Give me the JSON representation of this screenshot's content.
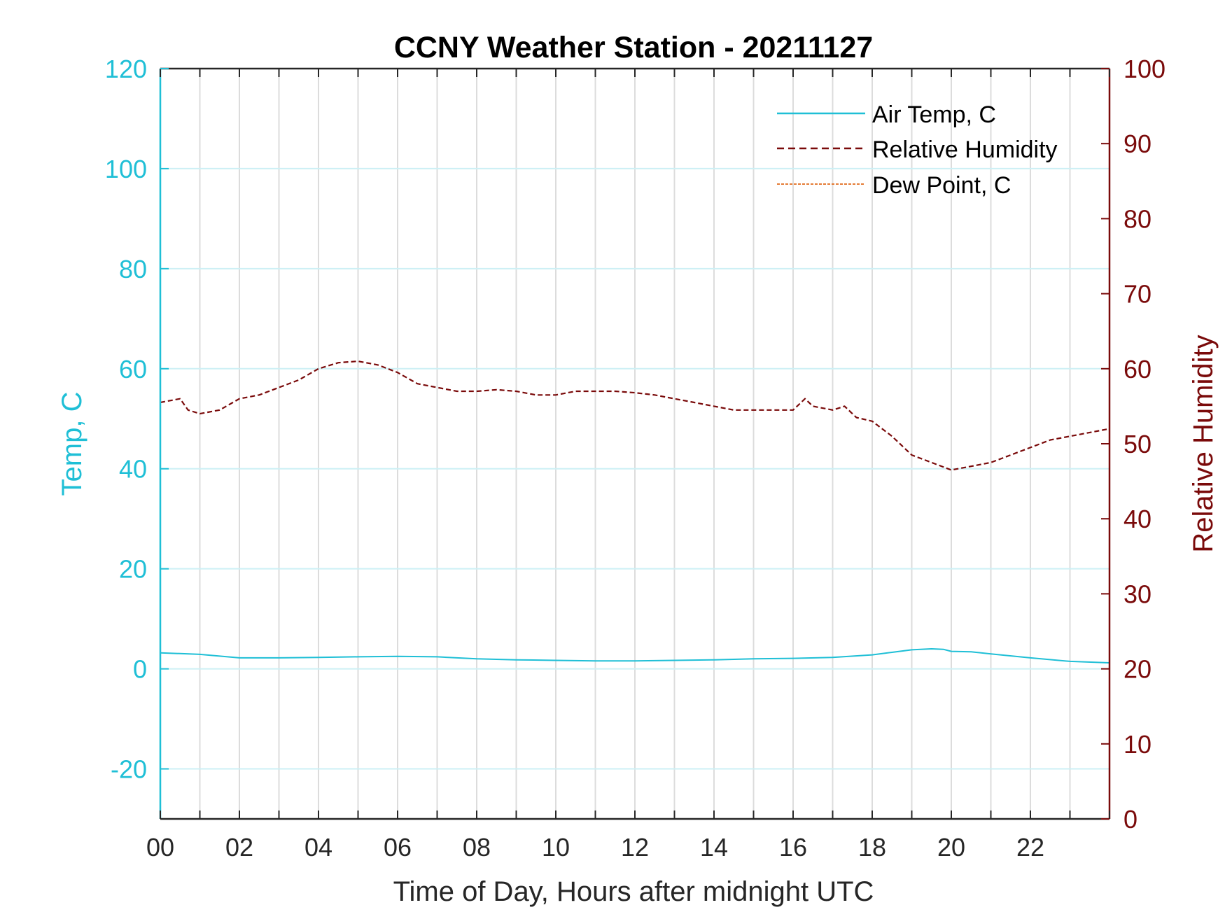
{
  "chart_data": {
    "type": "line",
    "title": "CCNY Weather Station - 20211127",
    "xlabel": "Time of Day, Hours after midnight UTC",
    "ylabel_left": "Temp, C",
    "ylabel_right": "Relative Humidity",
    "xlim": [
      0,
      24
    ],
    "ylim_left": [
      -30,
      120
    ],
    "ylim_right": [
      0,
      100
    ],
    "x_ticks": [
      0,
      2,
      4,
      6,
      8,
      10,
      12,
      14,
      16,
      18,
      20,
      22
    ],
    "x_tick_labels": [
      "00",
      "02",
      "04",
      "06",
      "08",
      "10",
      "12",
      "14",
      "16",
      "18",
      "20",
      "22"
    ],
    "y_left_ticks": [
      -20,
      0,
      20,
      40,
      60,
      80,
      100,
      120
    ],
    "y_left_tick_labels": [
      "-20",
      "0",
      "20",
      "40",
      "60",
      "80",
      "100",
      "120"
    ],
    "y_right_ticks": [
      0,
      10,
      20,
      30,
      40,
      50,
      60,
      70,
      80,
      90,
      100
    ],
    "y_right_tick_labels": [
      "0",
      "10",
      "20",
      "30",
      "40",
      "50",
      "60",
      "70",
      "80",
      "90",
      "100"
    ],
    "grid": true,
    "legend_position": "top-right",
    "colors": {
      "left_axis": "#1fbfd6",
      "right_axis": "#7a0a0a",
      "dew_point": "#e06a1a",
      "grid_x": "#dcdcdc",
      "grid_y": "#cdf0f5"
    },
    "series": [
      {
        "name": "Air Temp, C",
        "axis": "left",
        "style": "solid",
        "color": "#1fbfd6",
        "x": [
          0,
          1,
          2,
          3,
          4,
          5,
          6,
          7,
          8,
          9,
          10,
          11,
          12,
          13,
          14,
          15,
          16,
          17,
          18,
          18.5,
          19,
          19.5,
          19.8,
          20,
          20.5,
          21,
          22,
          23,
          24
        ],
        "y": [
          3.2,
          2.9,
          2.2,
          2.2,
          2.3,
          2.4,
          2.5,
          2.4,
          2.0,
          1.8,
          1.7,
          1.6,
          1.6,
          1.7,
          1.8,
          2.0,
          2.1,
          2.3,
          2.8,
          3.3,
          3.8,
          4.0,
          3.9,
          3.5,
          3.4,
          3.0,
          2.2,
          1.5,
          1.2
        ]
      },
      {
        "name": "Relative Humidity",
        "axis": "right",
        "style": "dashed",
        "color": "#7a0a0a",
        "x": [
          0,
          0.5,
          0.7,
          1.0,
          1.5,
          2.0,
          2.5,
          3.0,
          3.5,
          4.0,
          4.5,
          5.0,
          5.5,
          6.0,
          6.5,
          7.0,
          7.5,
          8.0,
          8.5,
          9.0,
          9.5,
          10.0,
          10.5,
          11.0,
          11.5,
          12.0,
          12.5,
          13.0,
          13.5,
          14.0,
          14.5,
          15.0,
          15.5,
          16.0,
          16.3,
          16.5,
          17.0,
          17.3,
          17.6,
          18.0,
          18.5,
          19.0,
          19.5,
          20.0,
          20.5,
          21.0,
          21.5,
          22.0,
          22.5,
          23.0,
          23.5,
          24.0
        ],
        "y": [
          55.5,
          56.0,
          54.5,
          54.0,
          54.5,
          56.0,
          56.5,
          57.5,
          58.5,
          60.0,
          60.8,
          61.0,
          60.5,
          59.5,
          58.0,
          57.5,
          57.0,
          57.0,
          57.2,
          57.0,
          56.5,
          56.5,
          57.0,
          57.0,
          57.0,
          56.8,
          56.5,
          56.0,
          55.5,
          55.0,
          54.5,
          54.5,
          54.5,
          54.5,
          56.0,
          55.0,
          54.5,
          55.0,
          53.5,
          53.0,
          51.0,
          48.5,
          47.5,
          46.5,
          47.0,
          47.5,
          48.5,
          49.5,
          50.5,
          51.0,
          51.5,
          52.0
        ]
      },
      {
        "name": "Dew Point, C",
        "axis": "left",
        "style": "dashed",
        "color": "#e06a1a",
        "x": [],
        "y": []
      }
    ]
  }
}
